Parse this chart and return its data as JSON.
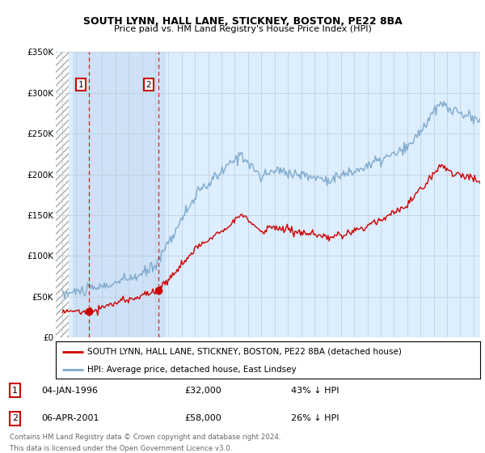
{
  "title": "SOUTH LYNN, HALL LANE, STICKNEY, BOSTON, PE22 8BA",
  "subtitle": "Price paid vs. HM Land Registry's House Price Index (HPI)",
  "legend_line1": "SOUTH LYNN, HALL LANE, STICKNEY, BOSTON, PE22 8BA (detached house)",
  "legend_line2": "HPI: Average price, detached house, East Lindsey",
  "annotation1_date": "04-JAN-1996",
  "annotation1_price": "£32,000",
  "annotation1_hpi": "43% ↓ HPI",
  "annotation2_date": "06-APR-2001",
  "annotation2_price": "£58,000",
  "annotation2_hpi": "26% ↓ HPI",
  "footer1": "Contains HM Land Registry data © Crown copyright and database right 2024.",
  "footer2": "This data is licensed under the Open Government Licence v3.0.",
  "sale1_x": 1996.01,
  "sale1_y": 32000,
  "sale2_x": 2001.26,
  "sale2_y": 58000,
  "ylim": [
    0,
    350000
  ],
  "xlim": [
    1993.5,
    2025.5
  ],
  "yticks": [
    0,
    50000,
    100000,
    150000,
    200000,
    250000,
    300000,
    350000
  ],
  "ytick_labels": [
    "£0",
    "£50K",
    "£100K",
    "£150K",
    "£200K",
    "£250K",
    "£300K",
    "£350K"
  ],
  "xticks": [
    1994,
    1995,
    1996,
    1997,
    1998,
    1999,
    2000,
    2001,
    2002,
    2003,
    2004,
    2005,
    2006,
    2007,
    2008,
    2009,
    2010,
    2011,
    2012,
    2013,
    2014,
    2015,
    2016,
    2017,
    2018,
    2019,
    2020,
    2021,
    2022,
    2023,
    2024,
    2025
  ],
  "price_color": "#cc0000",
  "hpi_color": "#7faacc",
  "background_color": "#ffffff",
  "plot_bg_color": "#ddeeff",
  "grid_color": "#bbccdd",
  "shaded_band_start": 1994.8,
  "shaded_band_end": 2001.8,
  "hatch_end": 1994.5
}
